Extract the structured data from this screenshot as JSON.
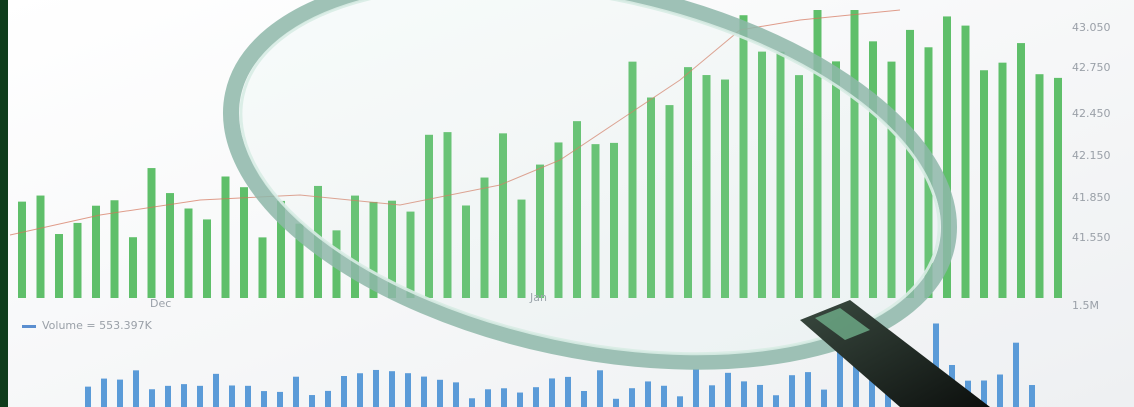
{
  "image": {
    "axis_labels": [
      "43.050",
      "42.750",
      "42.450",
      "42.150",
      "41.850",
      "41.550",
      "1.5M"
    ],
    "month_labels": [
      "Dec",
      "Jan"
    ],
    "volume_label": "Volume = 553.397K"
  }
}
